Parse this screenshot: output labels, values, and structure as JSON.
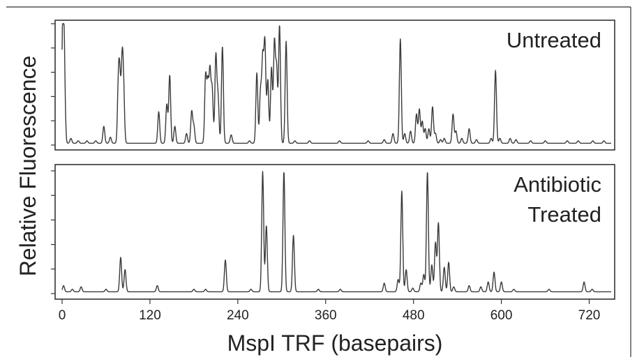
{
  "chart_data": {
    "type": "line",
    "xlabel": "MspI TRF (basepairs)",
    "ylabel": "Relative Fluorescence",
    "xlim": [
      0,
      750
    ],
    "x_ticks": [
      0,
      120,
      240,
      360,
      480,
      600,
      720
    ],
    "ylim": [
      0,
      100
    ],
    "grid": false,
    "legend": "none",
    "panels": [
      {
        "name": "Untreated",
        "label_lines": [
          "Untreated"
        ],
        "baseline": 1.5,
        "peaks": [
          [
            1,
            98
          ],
          [
            3,
            60
          ],
          [
            12,
            4
          ],
          [
            22,
            2
          ],
          [
            34,
            2
          ],
          [
            46,
            2
          ],
          [
            57,
            14
          ],
          [
            66,
            5
          ],
          [
            77,
            50
          ],
          [
            79,
            44
          ],
          [
            82,
            62
          ],
          [
            84,
            40
          ],
          [
            132,
            26
          ],
          [
            143,
            32
          ],
          [
            147,
            56
          ],
          [
            154,
            14
          ],
          [
            170,
            8
          ],
          [
            177,
            26
          ],
          [
            180,
            14
          ],
          [
            196,
            55
          ],
          [
            199,
            48
          ],
          [
            202,
            58
          ],
          [
            205,
            44
          ],
          [
            210,
            72
          ],
          [
            213,
            38
          ],
          [
            219,
            80
          ],
          [
            231,
            7
          ],
          [
            256,
            2
          ],
          [
            266,
            58
          ],
          [
            271,
            42
          ],
          [
            274,
            68
          ],
          [
            277,
            82
          ],
          [
            281,
            52
          ],
          [
            286,
            62
          ],
          [
            290,
            82
          ],
          [
            293,
            60
          ],
          [
            297,
            97
          ],
          [
            306,
            84
          ],
          [
            318,
            2
          ],
          [
            338,
            2
          ],
          [
            379,
            2
          ],
          [
            418,
            2
          ],
          [
            440,
            3
          ],
          [
            452,
            8
          ],
          [
            462,
            86
          ],
          [
            468,
            8
          ],
          [
            476,
            10
          ],
          [
            484,
            24
          ],
          [
            488,
            28
          ],
          [
            492,
            18
          ],
          [
            496,
            12
          ],
          [
            501,
            12
          ],
          [
            506,
            30
          ],
          [
            510,
            8
          ],
          [
            517,
            3
          ],
          [
            522,
            4
          ],
          [
            534,
            24
          ],
          [
            538,
            10
          ],
          [
            546,
            4
          ],
          [
            556,
            12
          ],
          [
            566,
            3
          ],
          [
            586,
            4
          ],
          [
            592,
            60
          ],
          [
            598,
            4
          ],
          [
            612,
            4
          ],
          [
            620,
            3
          ],
          [
            640,
            2
          ],
          [
            660,
            2
          ],
          [
            690,
            2
          ],
          [
            705,
            2
          ],
          [
            725,
            2
          ],
          [
            740,
            2
          ]
        ]
      },
      {
        "name": "Antibiotic Treated",
        "label_lines": [
          "Antibiotic",
          "Treated"
        ],
        "baseline": 1.5,
        "peaks": [
          [
            2,
            5
          ],
          [
            14,
            2
          ],
          [
            26,
            4
          ],
          [
            60,
            2
          ],
          [
            80,
            28
          ],
          [
            86,
            18
          ],
          [
            130,
            5
          ],
          [
            180,
            2
          ],
          [
            196,
            2
          ],
          [
            223,
            26
          ],
          [
            258,
            2
          ],
          [
            274,
            98
          ],
          [
            279,
            54
          ],
          [
            303,
            98
          ],
          [
            316,
            46
          ],
          [
            350,
            2
          ],
          [
            380,
            2
          ],
          [
            440,
            7
          ],
          [
            459,
            10
          ],
          [
            464,
            82
          ],
          [
            470,
            18
          ],
          [
            479,
            3
          ],
          [
            490,
            7
          ],
          [
            494,
            14
          ],
          [
            499,
            98
          ],
          [
            505,
            22
          ],
          [
            510,
            40
          ],
          [
            514,
            56
          ],
          [
            522,
            20
          ],
          [
            528,
            24
          ],
          [
            535,
            4
          ],
          [
            556,
            5
          ],
          [
            572,
            4
          ],
          [
            582,
            8
          ],
          [
            590,
            16
          ],
          [
            600,
            8
          ],
          [
            617,
            2
          ],
          [
            665,
            2
          ],
          [
            713,
            8
          ],
          [
            724,
            2
          ]
        ]
      }
    ]
  }
}
